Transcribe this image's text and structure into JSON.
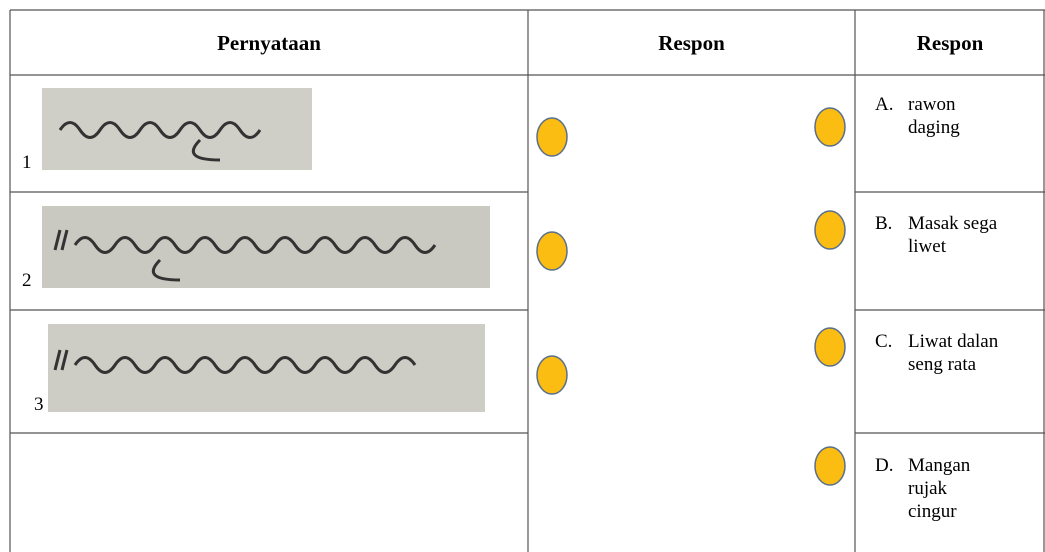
{
  "table": {
    "headers": [
      "Pernyataan",
      "Respon",
      "Respon"
    ],
    "statements": [
      "1",
      "2",
      "3"
    ],
    "options": [
      {
        "letter": "A.",
        "lines": [
          "rawon",
          "daging"
        ]
      },
      {
        "letter": "B.",
        "lines": [
          "Masak sega",
          "liwet"
        ]
      },
      {
        "letter": "C.",
        "lines": [
          "Liwat dalan",
          "seng rata"
        ]
      },
      {
        "letter": "D.",
        "lines": [
          "Mangan",
          "rujak",
          "cingur"
        ]
      }
    ]
  }
}
